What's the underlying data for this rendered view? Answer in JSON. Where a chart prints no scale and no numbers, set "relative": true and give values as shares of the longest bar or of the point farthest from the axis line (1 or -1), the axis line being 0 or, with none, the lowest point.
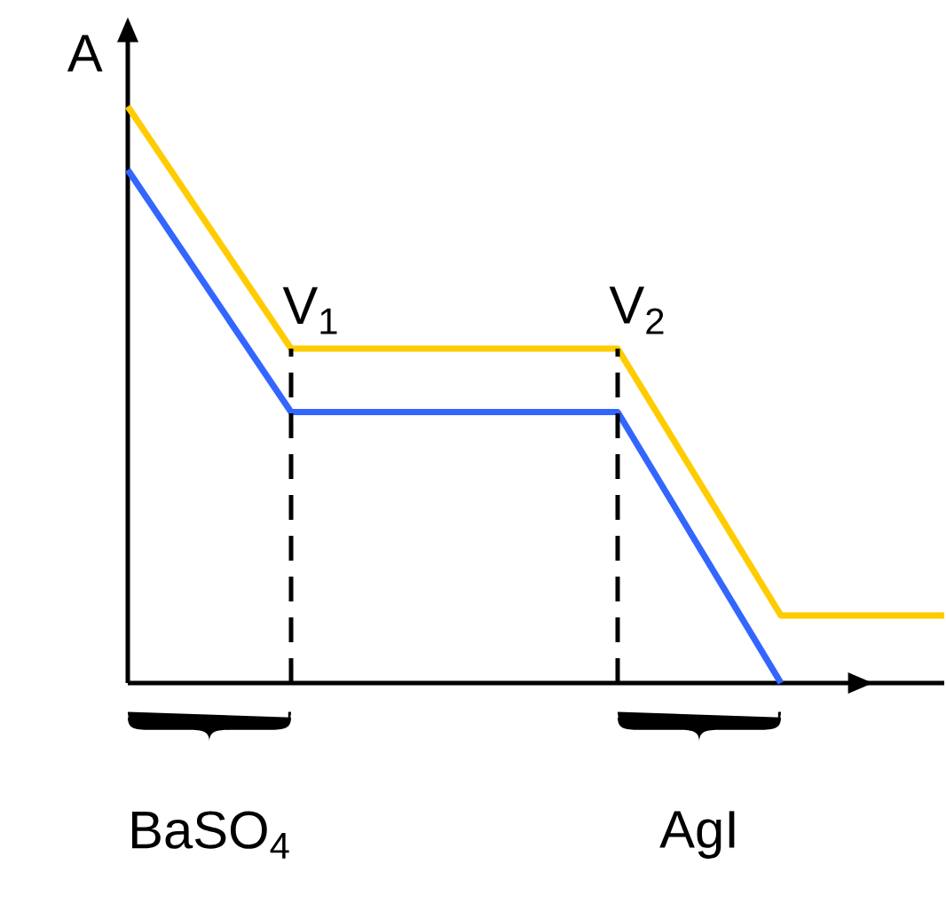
{
  "chart_data": {
    "type": "line",
    "relative": true,
    "ylabel": "A",
    "categories": [
      null,
      null,
      null,
      null,
      null,
      null
    ],
    "marker": "none",
    "line_style": "solid",
    "series": [
      {
        "color": "#ffcc00",
        "values": [
          1,
          0.58,
          0.58,
          0.58,
          0.117,
          0.117
        ]
      },
      {
        "color": "#3366ff",
        "values": [
          0.89,
          0.47,
          0.47,
          0.47,
          0,
          null
        ]
      }
    ],
    "annotations": [
      "V$_{1}$",
      "V$_{2}$",
      "BaSO$_{4}$",
      "AgI"
    ]
  }
}
